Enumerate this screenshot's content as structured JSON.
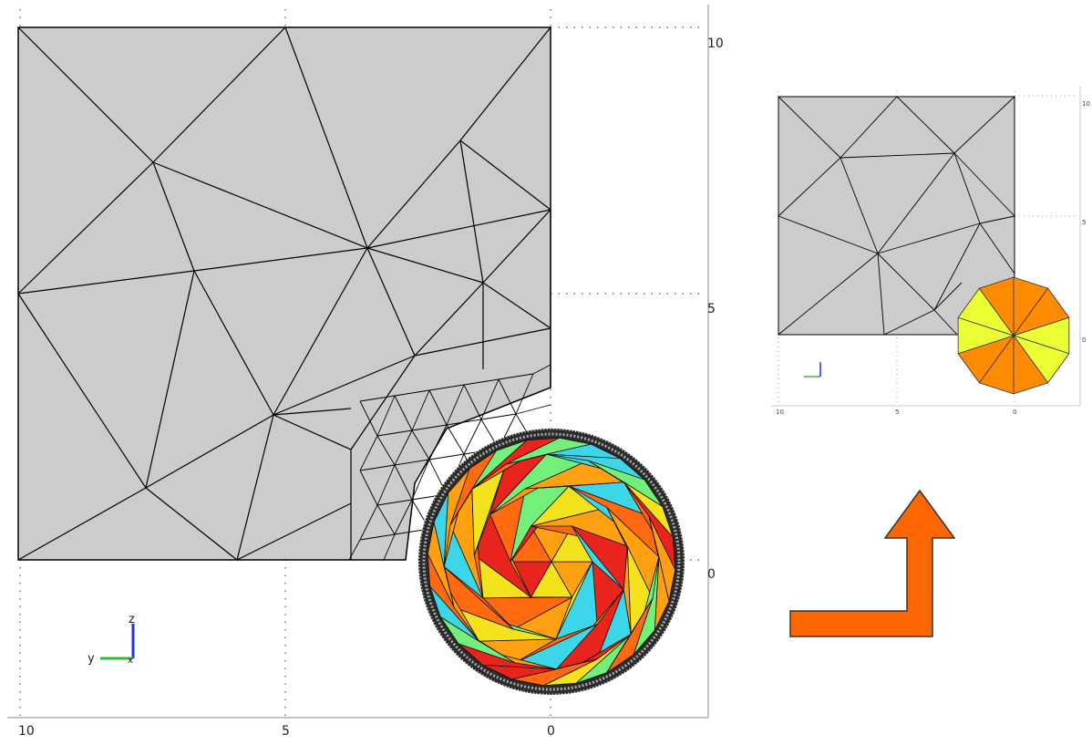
{
  "main_view": {
    "x_ticks": [
      "10",
      "5",
      "0"
    ],
    "y_ticks": [
      "10",
      "5",
      "0"
    ],
    "axis_triad": {
      "z": "z",
      "y": "y",
      "x": "x"
    }
  },
  "inset_view": {
    "x_ticks": [
      "10",
      "5",
      "0"
    ],
    "y_ticks": [
      "10",
      "5",
      "0"
    ]
  },
  "colors": {
    "mesh_fill": "#cccccc",
    "mesh_line": "#000000",
    "arrow": "#ff6600",
    "octagon_orange": "#ff8c00",
    "octagon_yellow": "#eaff33",
    "ball_palette": [
      "#e8241c",
      "#ff6a10",
      "#ffa010",
      "#f4e21c",
      "#72f07a",
      "#3cd6e8"
    ]
  }
}
